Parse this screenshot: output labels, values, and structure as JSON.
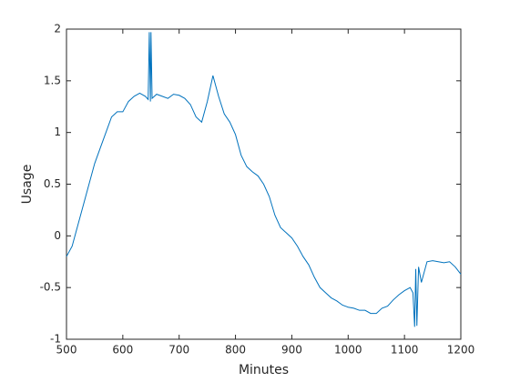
{
  "chart_data": {
    "type": "line",
    "xlabel": "Minutes",
    "ylabel": "Usage",
    "color": "#0072bd",
    "x": [
      500,
      510,
      520,
      530,
      540,
      550,
      560,
      570,
      580,
      590,
      600,
      610,
      620,
      630,
      640,
      645,
      647,
      649,
      650,
      652,
      660,
      670,
      680,
      690,
      700,
      710,
      720,
      730,
      740,
      750,
      760,
      770,
      780,
      790,
      800,
      810,
      820,
      830,
      840,
      850,
      860,
      870,
      880,
      890,
      900,
      910,
      920,
      930,
      940,
      950,
      960,
      970,
      980,
      990,
      1000,
      1010,
      1020,
      1030,
      1040,
      1050,
      1060,
      1070,
      1080,
      1090,
      1100,
      1110,
      1115,
      1118,
      1120,
      1122,
      1125,
      1130,
      1140,
      1150,
      1160,
      1170,
      1180,
      1190,
      1200
    ],
    "values": [
      -0.2,
      -0.1,
      0.1,
      0.3,
      0.5,
      0.7,
      0.85,
      1.0,
      1.15,
      1.2,
      1.2,
      1.3,
      1.35,
      1.38,
      1.35,
      1.32,
      1.97,
      1.3,
      1.97,
      1.33,
      1.37,
      1.35,
      1.33,
      1.37,
      1.36,
      1.33,
      1.27,
      1.15,
      1.1,
      1.3,
      1.55,
      1.35,
      1.18,
      1.1,
      0.98,
      0.78,
      0.67,
      0.62,
      0.58,
      0.5,
      0.38,
      0.2,
      0.08,
      0.03,
      -0.02,
      -0.1,
      -0.2,
      -0.28,
      -0.4,
      -0.5,
      -0.55,
      -0.6,
      -0.63,
      -0.67,
      -0.69,
      -0.7,
      -0.72,
      -0.72,
      -0.75,
      -0.75,
      -0.7,
      -0.68,
      -0.62,
      -0.57,
      -0.53,
      -0.5,
      -0.55,
      -0.88,
      -0.32,
      -0.87,
      -0.3,
      -0.45,
      -0.25,
      -0.24,
      -0.25,
      -0.26,
      -0.25,
      -0.3,
      -0.37
    ],
    "xlim": [
      500,
      1200
    ],
    "ylim": [
      -1,
      2
    ],
    "xticks": [
      500,
      600,
      700,
      800,
      900,
      1000,
      1100,
      1200
    ],
    "yticks": [
      -1,
      -0.5,
      0,
      0.5,
      1,
      1.5,
      2
    ]
  }
}
